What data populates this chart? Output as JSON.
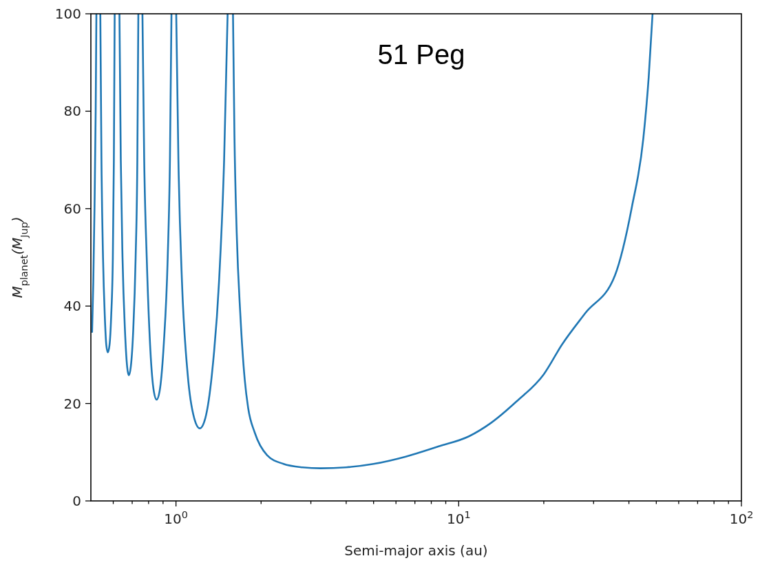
{
  "chart_data": {
    "type": "line",
    "title": "51 Peg",
    "xlabel": "Semi-major axis (au)",
    "ylabel": "M$_{planet}$(M$_{Jup}$)",
    "log": "x",
    "xlim": [
      0.5,
      100
    ],
    "ylim": [
      0,
      100
    ],
    "xticks": [
      {
        "value": 0.6,
        "label": null
      },
      {
        "value": 0.7,
        "label": null
      },
      {
        "value": 0.8,
        "label": null
      },
      {
        "value": 0.9,
        "label": null
      },
      {
        "value": 1,
        "label": "10$^{0}$"
      },
      {
        "value": 2,
        "label": null
      },
      {
        "value": 3,
        "label": null
      },
      {
        "value": 4,
        "label": null
      },
      {
        "value": 5,
        "label": null
      },
      {
        "value": 6,
        "label": null
      },
      {
        "value": 7,
        "label": null
      },
      {
        "value": 8,
        "label": null
      },
      {
        "value": 9,
        "label": null
      },
      {
        "value": 10,
        "label": "10$^{1}$"
      },
      {
        "value": 20,
        "label": null
      },
      {
        "value": 30,
        "label": null
      },
      {
        "value": 40,
        "label": null
      },
      {
        "value": 50,
        "label": null
      },
      {
        "value": 60,
        "label": null
      },
      {
        "value": 70,
        "label": null
      },
      {
        "value": 80,
        "label": null
      },
      {
        "value": 90,
        "label": null
      },
      {
        "value": 100,
        "label": "10$^{2}$"
      }
    ],
    "yticks": [
      0,
      20,
      40,
      60,
      80,
      100
    ],
    "marker": "none",
    "line_style": "solid",
    "series": [
      {
        "color": "#1f77b4",
        "x": [
          0.505,
          0.51,
          0.515,
          0.52,
          0.523,
          0.53,
          0.54,
          0.545,
          0.552,
          0.56,
          0.567,
          0.574,
          0.582,
          0.59,
          0.598,
          0.603,
          0.607,
          0.62,
          0.631,
          0.638,
          0.647,
          0.66,
          0.672,
          0.681,
          0.692,
          0.706,
          0.72,
          0.73,
          0.736,
          0.75,
          0.761,
          0.772,
          0.788,
          0.81,
          0.835,
          0.854,
          0.875,
          0.905,
          0.935,
          0.952,
          0.964,
          0.98,
          1.002,
          1.02,
          1.05,
          1.1,
          1.16,
          1.214,
          1.27,
          1.34,
          1.42,
          1.48,
          1.523,
          1.56,
          1.591,
          1.61,
          1.64,
          1.69,
          1.75,
          1.8,
          1.9,
          2.1,
          2.4,
          2.8,
          3.25,
          4,
          5,
          6.5,
          8.5,
          10.9,
          13,
          16,
          20,
          23.2,
          28,
          35.7,
          41,
          45,
          47,
          48.5
        ],
        "values": [
          34.7,
          45,
          60,
          80,
          100,
          null,
          100,
          70,
          50,
          38,
          32,
          30.5,
          32,
          38,
          50,
          70,
          100,
          null,
          100,
          70,
          50,
          35,
          27.5,
          25.8,
          27.5,
          35,
          50,
          70,
          100,
          null,
          100,
          70,
          50,
          32,
          22.5,
          20.8,
          22.5,
          32,
          50,
          70,
          100,
          null,
          100,
          70,
          45,
          26,
          17,
          14.9,
          17,
          26,
          45,
          70,
          100,
          null,
          100,
          75,
          55,
          38,
          25,
          19.1,
          14,
          9.4,
          7.6,
          6.9,
          6.7,
          6.9,
          7.6,
          9.1,
          11.2,
          13.3,
          16,
          20.4,
          26,
          32.1,
          38.5,
          46.3,
          60.4,
          74.5,
          87,
          100
        ]
      }
    ]
  }
}
